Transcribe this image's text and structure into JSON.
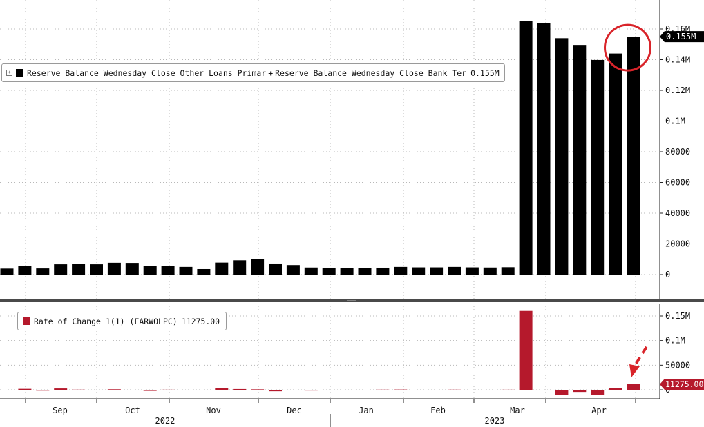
{
  "colors": {
    "top_series": "#000000",
    "bottom_series": "#b5192c",
    "grid": "#b8b8b8",
    "annotation": "#d9242a",
    "label_fill": "#000000",
    "label_text": "#ffffff"
  },
  "legend_top": {
    "series_a": "Reserve Balance Wednesday Close Other Loans Primar",
    "operator": "+",
    "series_b": "Reserve Balance Wednesday Close Bank Ter",
    "value": "0.155M"
  },
  "legend_bottom": {
    "label": "Rate of Change 1(1) (FARWOLPC)",
    "value": "11275.00"
  },
  "chart_data": [
    {
      "type": "bar",
      "panel": "top",
      "series": [
        {
          "name": "Reserve Balance Wednesday Close Other Loans Primar + Reserve Balance Wednesday Close Bank Ter",
          "values": [
            3900,
            5800,
            4000,
            6700,
            7000,
            6700,
            7700,
            7600,
            5400,
            5600,
            5000,
            3600,
            7800,
            9300,
            10200,
            7200,
            6200,
            4600,
            4500,
            4300,
            4200,
            4500,
            5000,
            4700,
            4700,
            5000,
            4700,
            4600,
            4800,
            165000,
            164000,
            154000,
            149600,
            139800,
            144000,
            155000
          ]
        }
      ],
      "ylim": [
        -2500,
        172000
      ],
      "yticks": [
        0,
        20000,
        40000,
        60000,
        80000,
        100000,
        120000,
        140000,
        160000
      ],
      "ytick_labels": [
        "0",
        "20000",
        "40000",
        "60000",
        "80000",
        "0.1M",
        "0.12M",
        "0.14M",
        "0.16M"
      ],
      "last_value_label": "0.155M",
      "xlabels_months": [
        "Sep",
        "Oct",
        "Nov",
        "Dec",
        "Jan",
        "Feb",
        "Mar",
        "Apr"
      ],
      "xlabels_years": [
        "2022",
        "2023"
      ],
      "grid": true,
      "legend": "top-left",
      "annotation": "circle around last bar"
    },
    {
      "type": "bar",
      "panel": "bottom",
      "series": [
        {
          "name": "Rate of Change 1(1) (FARWOLPC)",
          "values": [
            -200,
            1900,
            -1800,
            2700,
            300,
            -300,
            1000,
            -100,
            -2200,
            200,
            -600,
            -1400,
            4200,
            1500,
            900,
            -3000,
            -1000,
            -1600,
            -100,
            -200,
            -100,
            300,
            500,
            -300,
            0,
            300,
            -300,
            -100,
            200,
            160200,
            -1000,
            -10000,
            -4400,
            -9800,
            4200,
            11275
          ]
        }
      ],
      "ylim": [
        -15000,
        167000
      ],
      "yticks": [
        0,
        50000,
        100000,
        150000
      ],
      "ytick_labels": [
        "0",
        "50000",
        "0.1M",
        "0.15M"
      ],
      "last_value_label": "11275.00",
      "grid": true,
      "legend": "top-left",
      "annotation": "arrow pointing to last bar"
    }
  ]
}
